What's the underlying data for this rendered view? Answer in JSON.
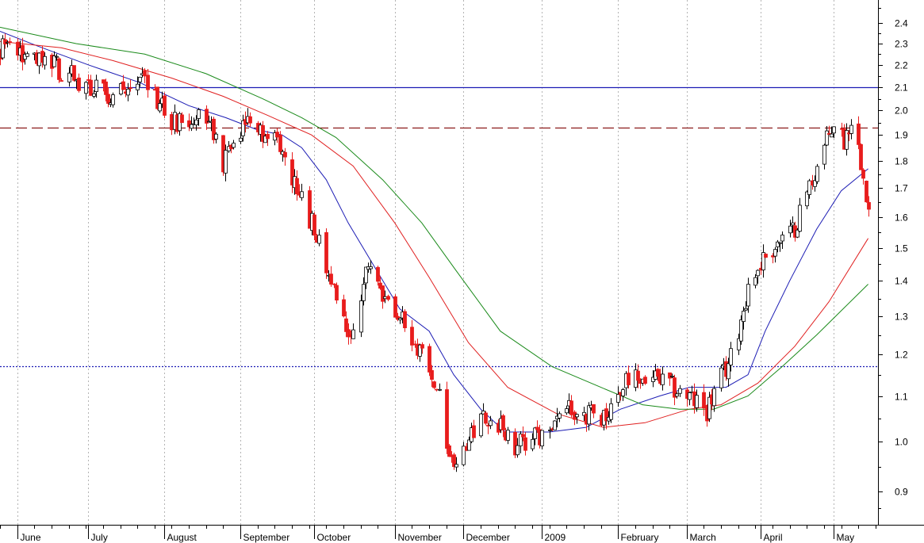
{
  "chart_data": {
    "type": "candlestick",
    "y_scale": "log",
    "ylim": [
      0.84,
      2.52
    ],
    "y_ticks": [
      {
        "value": 0.9,
        "label": "0.9"
      },
      {
        "value": 1.0,
        "label": "1.0"
      },
      {
        "value": 1.1,
        "label": "1.1"
      },
      {
        "value": 1.2,
        "label": "1.2"
      },
      {
        "value": 1.3,
        "label": "1.3"
      },
      {
        "value": 1.4,
        "label": "1.4"
      },
      {
        "value": 1.5,
        "label": "1.5"
      },
      {
        "value": 1.6,
        "label": "1.6"
      },
      {
        "value": 1.7,
        "label": "1.7"
      },
      {
        "value": 1.8,
        "label": "1.8"
      },
      {
        "value": 1.9,
        "label": "1.9"
      },
      {
        "value": 2.0,
        "label": "2.0"
      },
      {
        "value": 2.1,
        "label": "2.1"
      },
      {
        "value": 2.2,
        "label": "2.2"
      },
      {
        "value": 2.3,
        "label": "2.3"
      },
      {
        "value": 2.4,
        "label": "2.4"
      }
    ],
    "x_start": "2008-05-26",
    "x_end": "2009-05-19",
    "month_labels": [
      {
        "date": "2008-06-02",
        "label": "June"
      },
      {
        "date": "2008-07-01",
        "label": "July"
      },
      {
        "date": "2008-08-01",
        "label": "August"
      },
      {
        "date": "2008-09-01",
        "label": "September"
      },
      {
        "date": "2008-10-01",
        "label": "October"
      },
      {
        "date": "2008-11-03",
        "label": "November"
      },
      {
        "date": "2008-12-01",
        "label": "December"
      },
      {
        "date": "2009-01-02",
        "label": "2009"
      },
      {
        "date": "2009-02-02",
        "label": "February"
      },
      {
        "date": "2009-03-02",
        "label": "March"
      },
      {
        "date": "2009-04-01",
        "label": "April"
      },
      {
        "date": "2009-05-01",
        "label": "May"
      }
    ],
    "reference_lines": [
      {
        "value": 2.1,
        "style": "solid",
        "color": "#1c1cb4"
      },
      {
        "value": 1.93,
        "style": "dashed",
        "color": "#8b1a1a"
      },
      {
        "value": 1.17,
        "style": "dotted",
        "color": "#1c1cb4"
      }
    ],
    "price_anchors": [
      {
        "date": "2008-05-26",
        "close": 2.28
      },
      {
        "date": "2008-06-20",
        "close": 2.18
      },
      {
        "date": "2008-07-10",
        "close": 2.05
      },
      {
        "date": "2008-07-25",
        "close": 2.12
      },
      {
        "date": "2008-08-05",
        "close": 1.95
      },
      {
        "date": "2008-08-18",
        "close": 1.96
      },
      {
        "date": "2008-08-25",
        "close": 1.79
      },
      {
        "date": "2008-09-05",
        "close": 1.97
      },
      {
        "date": "2008-09-15",
        "close": 1.87
      },
      {
        "date": "2008-09-22",
        "close": 1.73
      },
      {
        "date": "2008-09-30",
        "close": 1.58
      },
      {
        "date": "2008-10-10",
        "close": 1.36
      },
      {
        "date": "2008-10-16",
        "close": 1.22
      },
      {
        "date": "2008-10-22",
        "close": 1.43
      },
      {
        "date": "2008-10-30",
        "close": 1.36
      },
      {
        "date": "2008-11-10",
        "close": 1.24
      },
      {
        "date": "2008-11-20",
        "close": 1.13
      },
      {
        "date": "2008-11-26",
        "close": 0.95
      },
      {
        "date": "2008-12-05",
        "close": 1.02
      },
      {
        "date": "2008-12-12",
        "close": 1.06
      },
      {
        "date": "2008-12-22",
        "close": 0.99
      },
      {
        "date": "2009-01-06",
        "close": 1.02
      },
      {
        "date": "2009-01-12",
        "close": 1.08
      },
      {
        "date": "2009-01-26",
        "close": 1.05
      },
      {
        "date": "2009-02-06",
        "close": 1.14
      },
      {
        "date": "2009-02-17",
        "close": 1.14
      },
      {
        "date": "2009-02-27",
        "close": 1.11
      },
      {
        "date": "2009-03-10",
        "close": 1.07
      },
      {
        "date": "2009-03-20",
        "close": 1.19
      },
      {
        "date": "2009-03-27",
        "close": 1.38
      },
      {
        "date": "2009-04-03",
        "close": 1.48
      },
      {
        "date": "2009-04-14",
        "close": 1.55
      },
      {
        "date": "2009-04-24",
        "close": 1.78
      },
      {
        "date": "2009-05-01",
        "close": 1.95
      },
      {
        "date": "2009-05-05",
        "close": 1.88
      },
      {
        "date": "2009-05-08",
        "close": 1.97
      },
      {
        "date": "2009-05-13",
        "close": 1.77
      },
      {
        "date": "2009-05-15",
        "close": 1.62
      }
    ],
    "moving_averages": [
      {
        "color": "#1c1cb4",
        "points": [
          {
            "date": "2008-05-26",
            "value": 2.36
          },
          {
            "date": "2008-06-10",
            "value": 2.29
          },
          {
            "date": "2008-07-01",
            "value": 2.2
          },
          {
            "date": "2008-07-22",
            "value": 2.12
          },
          {
            "date": "2008-08-11",
            "value": 2.02
          },
          {
            "date": "2008-08-26",
            "value": 1.97
          },
          {
            "date": "2008-09-08",
            "value": 1.92
          },
          {
            "date": "2008-09-18",
            "value": 1.9
          },
          {
            "date": "2008-09-26",
            "value": 1.85
          },
          {
            "date": "2008-10-06",
            "value": 1.73
          },
          {
            "date": "2008-10-15",
            "value": 1.58
          },
          {
            "date": "2008-10-25",
            "value": 1.45
          },
          {
            "date": "2008-11-05",
            "value": 1.32
          },
          {
            "date": "2008-11-17",
            "value": 1.26
          },
          {
            "date": "2008-11-27",
            "value": 1.15
          },
          {
            "date": "2008-12-08",
            "value": 1.07
          },
          {
            "date": "2008-12-18",
            "value": 1.02
          },
          {
            "date": "2009-01-05",
            "value": 1.02
          },
          {
            "date": "2009-01-20",
            "value": 1.03
          },
          {
            "date": "2009-02-03",
            "value": 1.07
          },
          {
            "date": "2009-02-19",
            "value": 1.1
          },
          {
            "date": "2009-03-03",
            "value": 1.12
          },
          {
            "date": "2009-03-18",
            "value": 1.12
          },
          {
            "date": "2009-03-27",
            "value": 1.15
          },
          {
            "date": "2009-04-03",
            "value": 1.26
          },
          {
            "date": "2009-04-13",
            "value": 1.4
          },
          {
            "date": "2009-04-24",
            "value": 1.56
          },
          {
            "date": "2009-05-04",
            "value": 1.69
          },
          {
            "date": "2009-05-15",
            "value": 1.77
          }
        ]
      },
      {
        "color": "#e02020",
        "points": [
          {
            "date": "2008-05-26",
            "value": 2.31
          },
          {
            "date": "2008-06-20",
            "value": 2.28
          },
          {
            "date": "2008-07-11",
            "value": 2.22
          },
          {
            "date": "2008-08-04",
            "value": 2.14
          },
          {
            "date": "2008-08-25",
            "value": 2.06
          },
          {
            "date": "2008-09-12",
            "value": 1.98
          },
          {
            "date": "2008-09-30",
            "value": 1.9
          },
          {
            "date": "2008-10-17",
            "value": 1.78
          },
          {
            "date": "2008-11-03",
            "value": 1.58
          },
          {
            "date": "2008-11-17",
            "value": 1.41
          },
          {
            "date": "2008-12-03",
            "value": 1.23
          },
          {
            "date": "2008-12-19",
            "value": 1.12
          },
          {
            "date": "2009-01-08",
            "value": 1.06
          },
          {
            "date": "2009-01-27",
            "value": 1.03
          },
          {
            "date": "2009-02-13",
            "value": 1.04
          },
          {
            "date": "2009-03-03",
            "value": 1.07
          },
          {
            "date": "2009-03-16",
            "value": 1.08
          },
          {
            "date": "2009-03-31",
            "value": 1.13
          },
          {
            "date": "2009-04-15",
            "value": 1.22
          },
          {
            "date": "2009-04-29",
            "value": 1.34
          },
          {
            "date": "2009-05-15",
            "value": 1.53
          }
        ]
      },
      {
        "color": "#1a8a1a",
        "points": [
          {
            "date": "2008-05-26",
            "value": 2.38
          },
          {
            "date": "2008-06-26",
            "value": 2.3
          },
          {
            "date": "2008-07-24",
            "value": 2.25
          },
          {
            "date": "2008-08-18",
            "value": 2.16
          },
          {
            "date": "2008-09-10",
            "value": 2.05
          },
          {
            "date": "2008-09-26",
            "value": 1.97
          },
          {
            "date": "2008-10-10",
            "value": 1.89
          },
          {
            "date": "2008-10-29",
            "value": 1.73
          },
          {
            "date": "2008-11-14",
            "value": 1.58
          },
          {
            "date": "2008-11-28",
            "value": 1.43
          },
          {
            "date": "2008-12-16",
            "value": 1.26
          },
          {
            "date": "2009-01-06",
            "value": 1.17
          },
          {
            "date": "2009-01-26",
            "value": 1.12
          },
          {
            "date": "2009-02-12",
            "value": 1.08
          },
          {
            "date": "2009-02-27",
            "value": 1.07
          },
          {
            "date": "2009-03-13",
            "value": 1.07
          },
          {
            "date": "2009-03-27",
            "value": 1.1
          },
          {
            "date": "2009-04-10",
            "value": 1.17
          },
          {
            "date": "2009-04-24",
            "value": 1.25
          },
          {
            "date": "2009-05-15",
            "value": 1.39
          }
        ]
      }
    ]
  }
}
